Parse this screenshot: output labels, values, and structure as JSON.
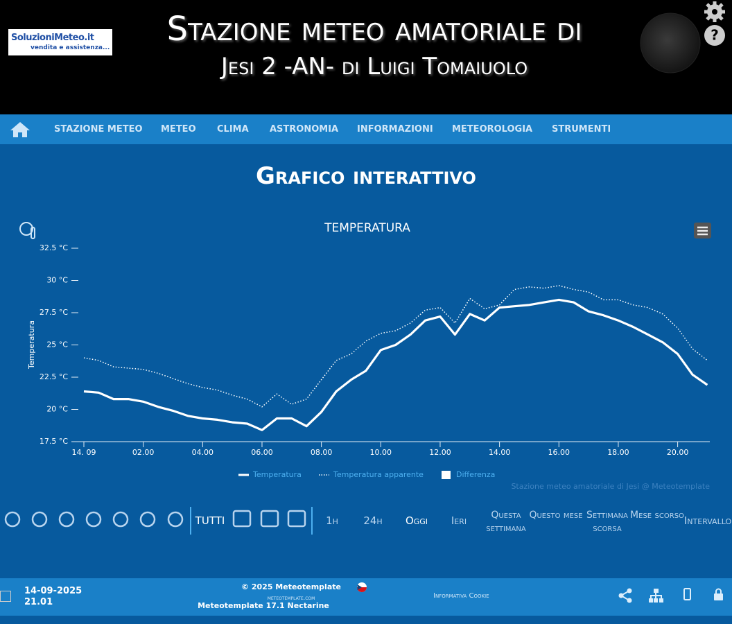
{
  "header": {
    "logo": {
      "title": "SoluzioniMeteo.it",
      "subtitle": "vendita e assistenza..."
    },
    "title": "Stazione meteo amatoriale di",
    "subtitle": "Jesi 2 -AN- di Luigi Tomaiuolo"
  },
  "nav": [
    "STAZIONE METEO",
    "METEO",
    "CLIMA",
    "ASTRONOMIA",
    "INFORMAZIONI",
    "METEOROLOGIA",
    "STRUMENTI"
  ],
  "page_title": "Grafico interattivo",
  "chart_data": {
    "type": "line",
    "title": "TEMPERATURA",
    "y_label": "Temperatura",
    "credit": "Stazione meteo amatoriale di Jesi @ Meteotemplate",
    "x": [
      "00.00",
      "00.30",
      "01.00",
      "01.30",
      "02.00",
      "02.30",
      "03.00",
      "03.30",
      "04.00",
      "04.30",
      "05.00",
      "05.30",
      "06.00",
      "06.30",
      "07.00",
      "07.30",
      "08.00",
      "08.30",
      "09.00",
      "09.30",
      "10.00",
      "10.30",
      "11.00",
      "11.30",
      "12.00",
      "12.30",
      "13.00",
      "13.30",
      "14.00",
      "14.30",
      "15.00",
      "15.30",
      "16.00",
      "16.30",
      "17.00",
      "17.30",
      "18.00",
      "18.30",
      "19.00",
      "19.30",
      "20.00",
      "20.30",
      "21.00"
    ],
    "series": [
      {
        "name": "Temperatura",
        "color": "#ffffff",
        "style": "solid",
        "values": [
          21.4,
          21.3,
          20.8,
          20.8,
          20.6,
          20.2,
          19.9,
          19.5,
          19.3,
          19.2,
          19.0,
          18.9,
          18.4,
          19.3,
          19.3,
          18.7,
          19.8,
          21.4,
          22.3,
          23.0,
          24.6,
          25.0,
          25.8,
          26.9,
          27.2,
          25.8,
          27.4,
          26.9,
          27.9,
          28.0,
          28.1,
          28.3,
          28.5,
          28.3,
          27.6,
          27.3,
          26.9,
          26.4,
          25.8,
          25.2,
          24.3,
          22.7,
          21.9
        ]
      },
      {
        "name": "Temperatura apparente",
        "color": "#ffffff",
        "style": "dotted",
        "values": [
          24.0,
          23.8,
          23.3,
          23.2,
          23.1,
          22.8,
          22.4,
          22.0,
          21.7,
          21.5,
          21.1,
          20.8,
          20.2,
          21.2,
          20.4,
          20.8,
          22.3,
          23.8,
          24.3,
          25.3,
          25.9,
          26.1,
          26.7,
          27.7,
          27.9,
          26.7,
          28.6,
          27.8,
          28.1,
          29.3,
          29.5,
          29.4,
          29.6,
          29.3,
          29.1,
          28.5,
          28.5,
          28.1,
          27.9,
          27.4,
          26.3,
          24.7,
          23.8
        ]
      },
      {
        "name": "Differenza",
        "color": "#ffffff",
        "style": "area"
      }
    ],
    "xlim": [
      "00.00",
      "21.05"
    ],
    "xticks": [
      {
        "value": "00.00",
        "label": "14. 09"
      },
      "02.00",
      "04.00",
      "06.00",
      "08.00",
      "10.00",
      "12.00",
      "14.00",
      "16.00",
      "18.00",
      "20.00"
    ],
    "ylim": [
      17.5,
      32.5
    ],
    "yticks": [
      {
        "value": 17.5,
        "label": "17.5 °C"
      },
      {
        "value": 20,
        "label": "20 °C"
      },
      {
        "value": 22.5,
        "label": "22.5 °C"
      },
      {
        "value": 25,
        "label": "25 °C"
      },
      {
        "value": 27.5,
        "label": "27.5 °C"
      },
      {
        "value": 30,
        "label": "30 °C"
      },
      {
        "value": 32.5,
        "label": "32.5 °C"
      }
    ],
    "legend": "bottom"
  },
  "toolbar": {
    "all": "TUTTI",
    "ranges": [
      "1h",
      "24h",
      "Oggi",
      "Ieri",
      "Questa settimana",
      "Questo mese",
      "Settimana scorsa",
      "Mese scorso",
      "Intervallo"
    ]
  },
  "footer": {
    "date": "14-09-2025",
    "time": "21.01",
    "copyright": "© 2025  Meteotemplate",
    "site": "meteotemplate.com",
    "version": "Meteotemplate 17.1 Nectarine",
    "cookie": "Informativa Cookie"
  }
}
